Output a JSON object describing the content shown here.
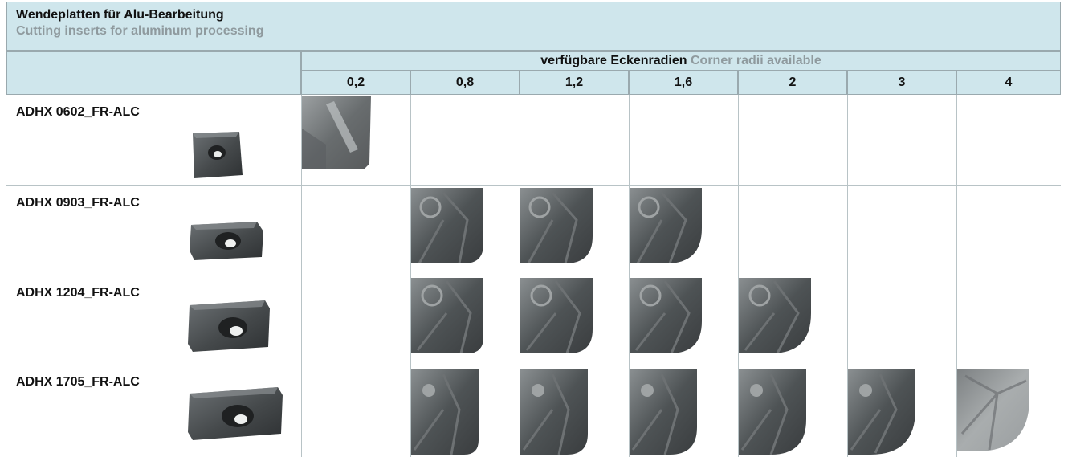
{
  "title": {
    "de": "Wendeplatten für Alu-Bearbeitung",
    "en": "Cutting inserts for aluminum processing"
  },
  "header": {
    "radii_de": "verfügbare Eckenradien",
    "radii_en": "Corner radii available",
    "radii": [
      "0,2",
      "0,8",
      "1,2",
      "1,6",
      "2",
      "3",
      "4"
    ]
  },
  "rows": [
    {
      "label": "ADHX 0602_FR-ALC",
      "available": [
        "0,2"
      ]
    },
    {
      "label": "ADHX 0903_FR-ALC",
      "available": [
        "0,8",
        "1,2",
        "1,6"
      ]
    },
    {
      "label": "ADHX 1204_FR-ALC",
      "available": [
        "0,8",
        "1,2",
        "1,6",
        "2"
      ]
    },
    {
      "label": "ADHX 1705_FR-ALC",
      "available": [
        "0,8",
        "1,2",
        "1,6",
        "2",
        "3",
        "4"
      ]
    }
  ],
  "colors": {
    "header_bg": "#cfe6ec",
    "grid_line": "#b8c3c6",
    "english_text": "#8f9a9e",
    "insert_dark": "#3e4143"
  }
}
